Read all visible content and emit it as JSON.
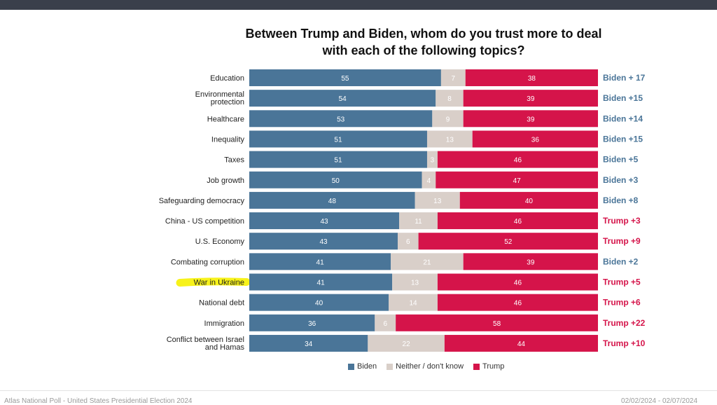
{
  "title_line1": "Between Trump and Biden, whom do you trust more to deal",
  "title_line2": "with each of the following topics?",
  "footer": {
    "source": "Atlas National Poll - United States Presidential Election 2024",
    "dates": "02/02/2024 - 02/07/2024"
  },
  "colors": {
    "biden": "#4a7598",
    "neither": "#d9cfc9",
    "trump": "#d5144a",
    "highlight": "#f7f21a"
  },
  "chart_data": {
    "type": "bar",
    "stacked": true,
    "orientation": "horizontal",
    "title": "Between Trump and Biden, whom do you trust more to deal with each of the following topics?",
    "series_names": [
      "Biden",
      "Neither / don't know",
      "Trump"
    ],
    "rows": [
      {
        "label": [
          "Education"
        ],
        "biden": 55,
        "neither": 7,
        "trump": 38,
        "lead": "Biden + 17",
        "leader": "biden",
        "highlight": false
      },
      {
        "label": [
          "Environmental",
          "protection"
        ],
        "biden": 54,
        "neither": 8,
        "trump": 39,
        "lead": "Biden +15",
        "leader": "biden",
        "highlight": false
      },
      {
        "label": [
          "Healthcare"
        ],
        "biden": 53,
        "neither": 9,
        "trump": 39,
        "lead": "Biden +14",
        "leader": "biden",
        "highlight": false
      },
      {
        "label": [
          "Inequality"
        ],
        "biden": 51,
        "neither": 13,
        "trump": 36,
        "lead": "Biden +15",
        "leader": "biden",
        "highlight": false
      },
      {
        "label": [
          "Taxes"
        ],
        "biden": 51,
        "neither": 3,
        "trump": 46,
        "lead": "Biden +5",
        "leader": "biden",
        "highlight": false
      },
      {
        "label": [
          "Job growth"
        ],
        "biden": 50,
        "neither": 4,
        "trump": 47,
        "lead": "Biden +3",
        "leader": "biden",
        "highlight": false
      },
      {
        "label": [
          "Safeguarding democracy"
        ],
        "biden": 48,
        "neither": 13,
        "trump": 40,
        "lead": "Biden +8",
        "leader": "biden",
        "highlight": false
      },
      {
        "label": [
          "China - US competition"
        ],
        "biden": 43,
        "neither": 11,
        "trump": 46,
        "lead": "Trump +3",
        "leader": "trump",
        "highlight": false
      },
      {
        "label": [
          "U.S. Economy"
        ],
        "biden": 43,
        "neither": 6,
        "trump": 52,
        "lead": "Trump +9",
        "leader": "trump",
        "highlight": false
      },
      {
        "label": [
          "Combating corruption"
        ],
        "biden": 41,
        "neither": 21,
        "trump": 39,
        "lead": "Biden +2",
        "leader": "biden",
        "highlight": false
      },
      {
        "label": [
          "War in Ukraine"
        ],
        "biden": 41,
        "neither": 13,
        "trump": 46,
        "lead": "Trump +5",
        "leader": "trump",
        "highlight": true
      },
      {
        "label": [
          "National debt"
        ],
        "biden": 40,
        "neither": 14,
        "trump": 46,
        "lead": "Trump +6",
        "leader": "trump",
        "highlight": false
      },
      {
        "label": [
          "Immigration"
        ],
        "biden": 36,
        "neither": 6,
        "trump": 58,
        "lead": "Trump +22",
        "leader": "trump",
        "highlight": false
      },
      {
        "label": [
          "Conflict between Israel",
          "and Hamas"
        ],
        "biden": 34,
        "neither": 22,
        "trump": 44,
        "lead": "Trump +10",
        "leader": "trump",
        "highlight": false
      }
    ],
    "legend": [
      "Biden",
      "Neither / don't know",
      "Trump"
    ]
  }
}
